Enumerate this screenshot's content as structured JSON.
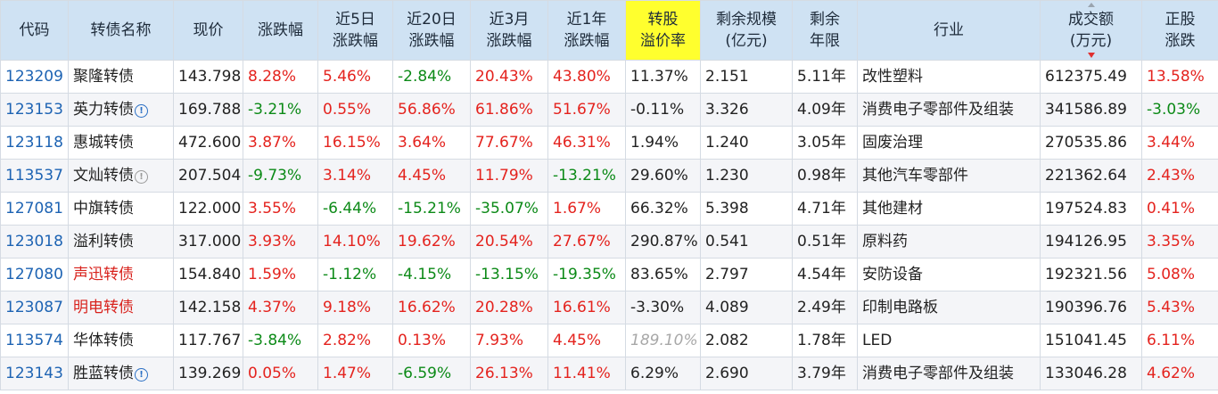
{
  "headers": [
    {
      "lines": [
        "代码"
      ]
    },
    {
      "lines": [
        "转债名称"
      ]
    },
    {
      "lines": [
        "现价"
      ]
    },
    {
      "lines": [
        "涨跌幅"
      ]
    },
    {
      "lines": [
        "近5日",
        "涨跌幅"
      ]
    },
    {
      "lines": [
        "近20日",
        "涨跌幅"
      ]
    },
    {
      "lines": [
        "近3月",
        "涨跌幅"
      ]
    },
    {
      "lines": [
        "近1年",
        "涨跌幅"
      ]
    },
    {
      "lines": [
        "转股",
        "溢价率"
      ],
      "highlight": true
    },
    {
      "lines": [
        "剩余规模",
        "(亿元)"
      ]
    },
    {
      "lines": [
        "剩余",
        "年限"
      ]
    },
    {
      "lines": [
        "行业"
      ]
    },
    {
      "lines": [
        "成交额",
        "(万元)"
      ],
      "sorted": "desc"
    },
    {
      "lines": [
        "正股",
        "涨跌"
      ]
    }
  ],
  "rows": [
    {
      "code": "123209",
      "name": "聚隆转债",
      "price": "143.798",
      "chg": "8.28%",
      "chg5": "5.46%",
      "chg20": "-2.84%",
      "chg3m": "20.43%",
      "chg1y": "43.80%",
      "premium": "11.37%",
      "scale": "2.151",
      "years": "5.11年",
      "industry": "改性塑料",
      "amount": "612375.49",
      "stock_chg": "13.58%"
    },
    {
      "code": "123153",
      "name": "英力转债",
      "icon": "info-icon",
      "price": "169.788",
      "chg": "-3.21%",
      "chg5": "0.55%",
      "chg20": "56.86%",
      "chg3m": "61.86%",
      "chg1y": "51.67%",
      "premium": "-0.11%",
      "scale": "3.326",
      "years": "4.09年",
      "industry": "消费电子零部件及组装",
      "amount": "341586.89",
      "stock_chg": "-3.03%"
    },
    {
      "code": "123118",
      "name": "惠城转债",
      "price": "472.600",
      "chg": "3.87%",
      "chg5": "16.15%",
      "chg20": "3.64%",
      "chg3m": "77.67%",
      "chg1y": "46.31%",
      "premium": "1.94%",
      "scale": "1.240",
      "years": "3.05年",
      "industry": "固废治理",
      "amount": "270535.86",
      "stock_chg": "3.44%"
    },
    {
      "code": "113537",
      "name": "文灿转债",
      "icon": "info-icon-gray",
      "price": "207.504",
      "chg": "-9.73%",
      "chg5": "3.14%",
      "chg20": "4.45%",
      "chg3m": "11.79%",
      "chg1y": "-13.21%",
      "premium": "29.60%",
      "scale": "1.230",
      "years": "0.98年",
      "industry": "其他汽车零部件",
      "amount": "221362.64",
      "stock_chg": "2.43%"
    },
    {
      "code": "127081",
      "name": "中旗转债",
      "price": "122.000",
      "chg": "3.55%",
      "chg5": "-6.44%",
      "chg20": "-15.21%",
      "chg3m": "-35.07%",
      "chg1y": "1.67%",
      "premium": "66.32%",
      "scale": "5.398",
      "years": "4.71年",
      "industry": "其他建材",
      "amount": "197524.83",
      "stock_chg": "0.41%"
    },
    {
      "code": "123018",
      "name": "溢利转债",
      "price": "317.000",
      "chg": "3.93%",
      "chg5": "14.10%",
      "chg20": "19.62%",
      "chg3m": "20.54%",
      "chg1y": "27.67%",
      "premium": "290.87%",
      "scale": "0.541",
      "years": "0.51年",
      "industry": "原料药",
      "amount": "194126.95",
      "stock_chg": "3.35%"
    },
    {
      "code": "127080",
      "name": "声迅转债",
      "name_red": true,
      "price": "154.840",
      "chg": "1.59%",
      "chg5": "-1.12%",
      "chg20": "-4.15%",
      "chg3m": "-13.15%",
      "chg1y": "-19.35%",
      "premium": "83.65%",
      "scale": "2.797",
      "years": "4.54年",
      "industry": "安防设备",
      "amount": "192321.56",
      "stock_chg": "5.08%"
    },
    {
      "code": "123087",
      "name": "明电转债",
      "name_red": true,
      "price": "142.158",
      "chg": "4.37%",
      "chg5": "9.18%",
      "chg20": "16.62%",
      "chg3m": "20.28%",
      "chg1y": "16.61%",
      "premium": "-3.30%",
      "scale": "4.089",
      "years": "2.49年",
      "industry": "印制电路板",
      "amount": "190396.76",
      "stock_chg": "5.43%"
    },
    {
      "code": "113574",
      "name": "华体转债",
      "price": "117.767",
      "chg": "-3.84%",
      "chg5": "2.82%",
      "chg20": "0.13%",
      "chg3m": "7.93%",
      "chg1y": "4.45%",
      "premium": "189.10%",
      "premium_muted": true,
      "scale": "2.082",
      "years": "1.78年",
      "industry": "LED",
      "amount": "151041.45",
      "stock_chg": "6.11%"
    },
    {
      "code": "123143",
      "name": "胜蓝转债",
      "icon": "info-icon",
      "price": "139.269",
      "chg": "0.05%",
      "chg5": "1.47%",
      "chg20": "-6.59%",
      "chg3m": "26.13%",
      "chg1y": "11.41%",
      "premium": "6.29%",
      "scale": "2.690",
      "years": "3.79年",
      "industry": "消费电子零部件及组装",
      "amount": "133046.28",
      "stock_chg": "4.62%"
    }
  ],
  "colors": {
    "up": "#e4231e",
    "down": "#0c8a17",
    "code": "#1d63b3",
    "header_bg": "#cfe2f3",
    "highlight_bg": "#ffff2e"
  }
}
